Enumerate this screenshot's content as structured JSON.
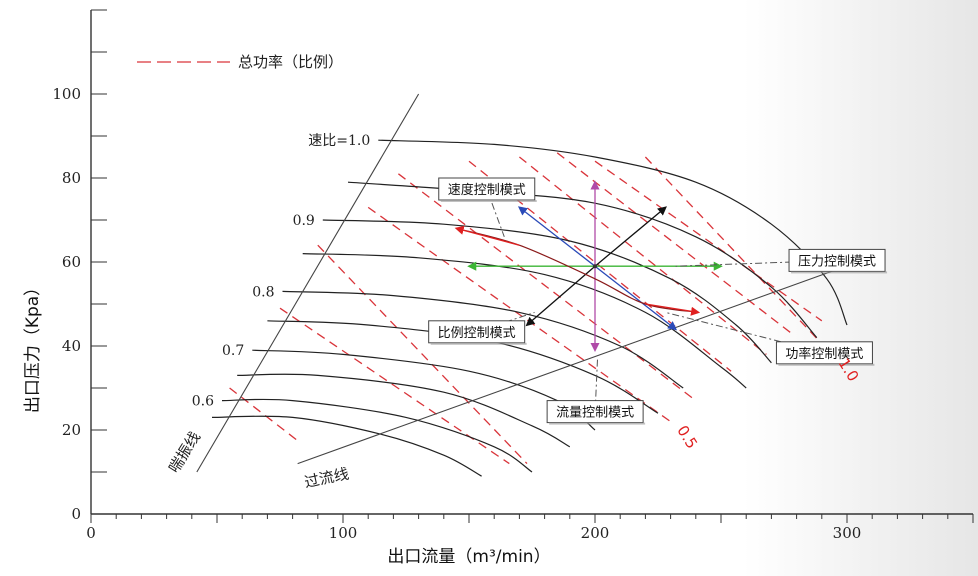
{
  "chart_data": {
    "type": "line",
    "xlabel": "出口流量（m³/min）",
    "ylabel": "出口压力（Kpa）",
    "xlim": [
      0,
      350
    ],
    "ylim": [
      0,
      120
    ],
    "x_ticks": [
      {
        "value": 0,
        "label": "0"
      },
      {
        "value": 100,
        "label": "100"
      },
      {
        "value": 200,
        "label": "200"
      },
      {
        "value": 300,
        "label": "300"
      }
    ],
    "y_ticks": [
      {
        "value": 0,
        "label": "0"
      },
      {
        "value": 20,
        "label": "20"
      },
      {
        "value": 40,
        "label": "40"
      },
      {
        "value": 60,
        "label": "60"
      },
      {
        "value": 80,
        "label": "80"
      },
      {
        "value": 100,
        "label": "100"
      }
    ],
    "legend": {
      "label": "总功率（比例）",
      "placement": "top-left"
    },
    "speed_curves": [
      {
        "label": "速比=1.0",
        "points": [
          [
            114,
            89
          ],
          [
            160,
            88
          ],
          [
            200,
            85
          ],
          [
            240,
            79
          ],
          [
            270,
            69
          ],
          [
            292,
            56
          ],
          [
            300,
            45
          ]
        ]
      },
      {
        "label": "",
        "points": [
          [
            102,
            79
          ],
          [
            150,
            77
          ],
          [
            200,
            74
          ],
          [
            240,
            66
          ],
          [
            270,
            54
          ],
          [
            288,
            42
          ]
        ]
      },
      {
        "label": "0.9",
        "points": [
          [
            92,
            70
          ],
          [
            140,
            69
          ],
          [
            190,
            65
          ],
          [
            230,
            56
          ],
          [
            256,
            45
          ],
          [
            270,
            36
          ]
        ]
      },
      {
        "label": "",
        "points": [
          [
            84,
            62
          ],
          [
            130,
            61
          ],
          [
            180,
            57
          ],
          [
            220,
            48
          ],
          [
            250,
            35
          ],
          [
            260,
            30
          ]
        ]
      },
      {
        "label": "0.8",
        "points": [
          [
            76,
            53
          ],
          [
            120,
            52
          ],
          [
            170,
            48
          ],
          [
            210,
            40
          ],
          [
            235,
            30
          ]
        ]
      },
      {
        "label": "",
        "points": [
          [
            70,
            46
          ],
          [
            110,
            45
          ],
          [
            160,
            41
          ],
          [
            200,
            33
          ],
          [
            225,
            24
          ]
        ]
      },
      {
        "label": "0.7",
        "points": [
          [
            64,
            39
          ],
          [
            100,
            38
          ],
          [
            150,
            34
          ],
          [
            185,
            27
          ],
          [
            200,
            20
          ]
        ]
      },
      {
        "label": "",
        "points": [
          [
            58,
            33
          ],
          [
            90,
            33
          ],
          [
            140,
            29
          ],
          [
            175,
            21
          ],
          [
            190,
            16
          ]
        ]
      },
      {
        "label": "0.6",
        "points": [
          [
            52,
            27
          ],
          [
            80,
            27
          ],
          [
            125,
            23
          ],
          [
            160,
            16
          ],
          [
            175,
            10
          ]
        ]
      },
      {
        "label": "",
        "points": [
          [
            48,
            23
          ],
          [
            80,
            23
          ],
          [
            115,
            19
          ],
          [
            140,
            14
          ],
          [
            155,
            9
          ]
        ]
      }
    ],
    "power_lines": [
      {
        "label": "",
        "points": [
          [
            55,
            30
          ],
          [
            83,
            17
          ]
        ]
      },
      {
        "label": "",
        "points": [
          [
            75,
            49
          ],
          [
            166,
            12
          ]
        ]
      },
      {
        "label": "",
        "points": [
          [
            90,
            64
          ],
          [
            173,
            12
          ]
        ]
      },
      {
        "label": "0.5",
        "points": [
          [
            110,
            73
          ],
          [
            230,
            22
          ]
        ]
      },
      {
        "label": "",
        "points": [
          [
            122,
            81
          ],
          [
            240,
            27
          ]
        ]
      },
      {
        "label": "",
        "points": [
          [
            150,
            84
          ],
          [
            254,
            34
          ]
        ]
      },
      {
        "label": "",
        "points": [
          [
            170,
            85
          ],
          [
            268,
            38
          ]
        ]
      },
      {
        "label": "",
        "points": [
          [
            185,
            86
          ],
          [
            278,
            43
          ]
        ]
      },
      {
        "label": "",
        "points": [
          [
            200,
            84
          ],
          [
            290,
            46
          ]
        ]
      },
      {
        "label": "1.0",
        "points": [
          [
            220,
            85
          ],
          [
            294,
            38
          ]
        ]
      }
    ],
    "surge_line": {
      "label": "喘振线",
      "points": [
        [
          42,
          10
        ],
        [
          130,
          100
        ]
      ]
    },
    "overflow_line": {
      "label": "过流线",
      "points": [
        [
          82,
          12
        ],
        [
          295,
          58
        ]
      ]
    },
    "operating_point": [
      200,
      59
    ],
    "mode_arrows": [
      {
        "mode": "pressure",
        "color": "#3cb534",
        "from": [
          200,
          59
        ],
        "to": [
          150,
          59
        ]
      },
      {
        "mode": "pressure",
        "color": "#3cb534",
        "from": [
          200,
          59
        ],
        "to": [
          250,
          59
        ]
      },
      {
        "mode": "flow",
        "color": "#b04aa8",
        "from": [
          200,
          59
        ],
        "to": [
          200,
          79
        ]
      },
      {
        "mode": "flow",
        "color": "#b04aa8",
        "from": [
          200,
          59
        ],
        "to": [
          200,
          39
        ]
      },
      {
        "mode": "ratio",
        "color": "#111111",
        "from": [
          200,
          59
        ],
        "to": [
          228,
          73
        ]
      },
      {
        "mode": "ratio",
        "color": "#111111",
        "from": [
          200,
          59
        ],
        "to": [
          173,
          45
        ]
      },
      {
        "mode": "power",
        "color": "#2a4ab8",
        "from": [
          200,
          59
        ],
        "to": [
          170,
          73
        ]
      },
      {
        "mode": "power",
        "color": "#2a4ab8",
        "from": [
          200,
          59
        ],
        "to": [
          232,
          44
        ]
      }
    ],
    "speed_arrow": {
      "color": "#e02020",
      "points": [
        [
          145,
          68
        ],
        [
          170,
          64
        ],
        [
          200,
          56
        ],
        [
          220,
          50
        ],
        [
          241,
          48
        ]
      ]
    },
    "annotations": [
      {
        "text": "速度控制模式",
        "box": [
          138,
          80
        ],
        "target": [
          164,
          66
        ]
      },
      {
        "text": "压力控制模式",
        "box": [
          277,
          63
        ],
        "target": [
          232,
          59
        ]
      },
      {
        "text": "比例控制模式",
        "box": [
          134,
          46
        ],
        "target": [
          176,
          48
        ]
      },
      {
        "text": "功率控制模式",
        "box": [
          272,
          41
        ],
        "target": [
          228,
          48
        ]
      },
      {
        "text": "流量控制模式",
        "box": [
          181,
          27
        ],
        "target": [
          201,
          37
        ]
      }
    ],
    "colors": {
      "curve": "#222222",
      "power_dash": "#d9343a",
      "axis": "#333333"
    }
  }
}
